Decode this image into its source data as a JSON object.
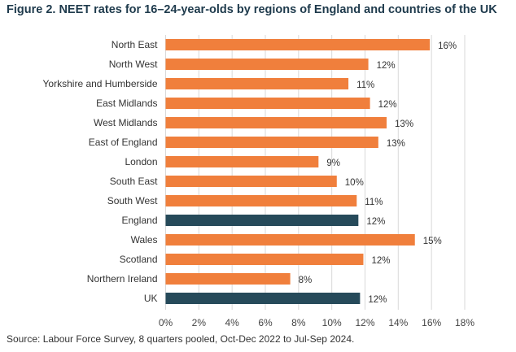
{
  "chart_data": {
    "type": "bar",
    "orientation": "horizontal",
    "title": "Figure 2. NEET rates for 16–24-year-olds by regions of England and countries of the UK",
    "source": "Source: Labour Force Survey, 8 quarters pooled, Oct-Dec 2022 to Jul-Sep 2024.",
    "categories": [
      "North East",
      "North West",
      "Yorkshire and Humberside",
      "East Midlands",
      "West Midlands",
      "East of England",
      "London",
      "South East",
      "South West",
      "England",
      "Wales",
      "Scotland",
      "Northern Ireland",
      "UK"
    ],
    "values": [
      15.9,
      12.2,
      11.0,
      12.3,
      13.3,
      12.8,
      9.2,
      10.3,
      11.5,
      11.6,
      15.0,
      11.9,
      7.5,
      11.7
    ],
    "data_labels": [
      "16%",
      "12%",
      "11%",
      "12%",
      "13%",
      "13%",
      "9%",
      "10%",
      "11%",
      "12%",
      "15%",
      "12%",
      "8%",
      "12%"
    ],
    "highlight": [
      "England",
      "UK"
    ],
    "colors": {
      "default": "#f07f3c",
      "highlight": "#264a5a",
      "grid": "#d9d9d9"
    },
    "xlim": [
      0,
      18
    ],
    "xticks": [
      "0%",
      "2%",
      "4%",
      "6%",
      "8%",
      "10%",
      "12%",
      "14%",
      "16%",
      "18%"
    ],
    "xlabel": "",
    "ylabel": "",
    "grid": true,
    "legend": "none"
  }
}
